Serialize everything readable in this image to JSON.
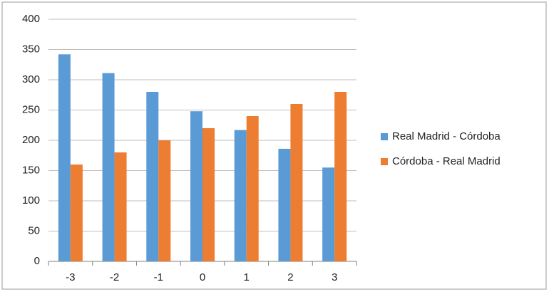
{
  "chart_data": {
    "type": "bar",
    "categories": [
      "-3",
      "-2",
      "-1",
      "0",
      "1",
      "2",
      "3"
    ],
    "series": [
      {
        "name": "Real Madrid - Córdoba",
        "color": "#5b9bd5",
        "values": [
          342,
          311,
          280,
          248,
          217,
          186,
          155
        ]
      },
      {
        "name": "Córdoba - Real Madrid",
        "color": "#ed7d31",
        "values": [
          160,
          180,
          200,
          220,
          240,
          260,
          280
        ]
      }
    ],
    "ylim": [
      0,
      400
    ],
    "yticks": [
      0,
      50,
      100,
      150,
      200,
      250,
      300,
      350,
      400
    ],
    "grid": true,
    "legend": "right"
  }
}
